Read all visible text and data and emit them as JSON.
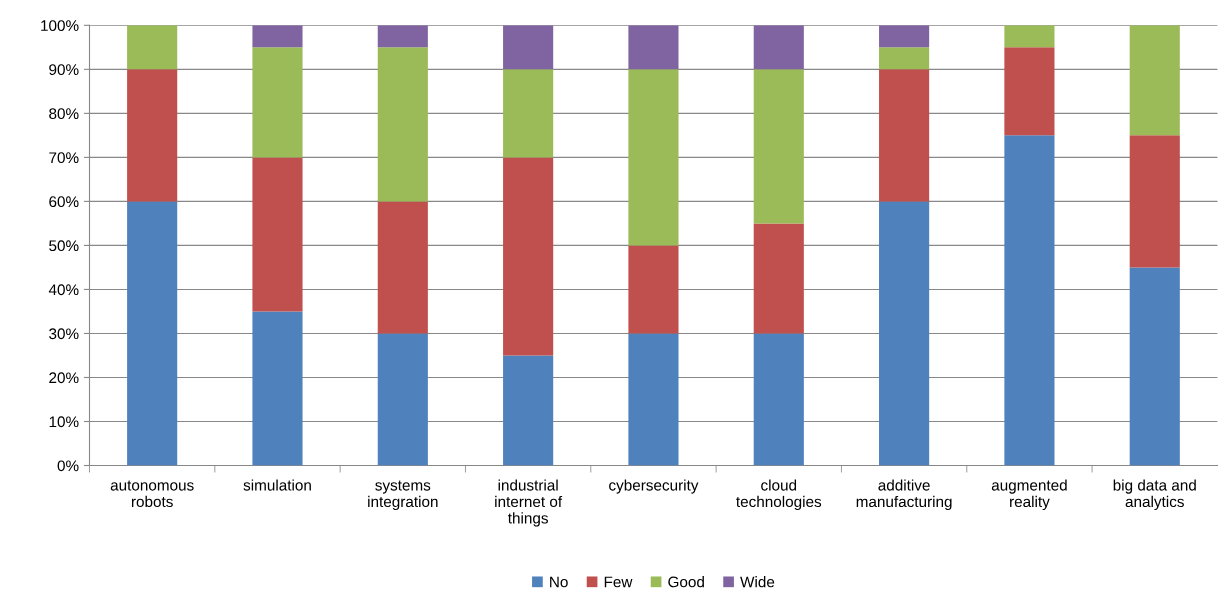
{
  "chart_data": {
    "type": "bar",
    "stacked": true,
    "categories": [
      "autonomous robots",
      "simulation",
      "systems integration",
      "industrial internet of things",
      "cybersecurity",
      "cloud technologies",
      "additive manufacturing",
      "augmented reality",
      "big data and analytics"
    ],
    "series": [
      {
        "name": "No",
        "color": "#4f81bd",
        "values": [
          60,
          35,
          30,
          25,
          30,
          30,
          60,
          75,
          45
        ]
      },
      {
        "name": "Few",
        "color": "#c0504d",
        "values": [
          30,
          35,
          30,
          45,
          20,
          25,
          30,
          20,
          30
        ]
      },
      {
        "name": "Good",
        "color": "#9bbb59",
        "values": [
          10,
          25,
          35,
          20,
          40,
          35,
          5,
          5,
          25
        ]
      },
      {
        "name": "Wide",
        "color": "#8064a2",
        "values": [
          0,
          5,
          5,
          10,
          10,
          10,
          5,
          0,
          0
        ]
      }
    ],
    "ylim": [
      0,
      100
    ],
    "yticks": [
      {
        "value": 0,
        "label": "0%"
      },
      {
        "value": 10,
        "label": "10%"
      },
      {
        "value": 20,
        "label": "20%"
      },
      {
        "value": 30,
        "label": "30%"
      },
      {
        "value": 40,
        "label": "40%"
      },
      {
        "value": 50,
        "label": "50%"
      },
      {
        "value": 60,
        "label": "60%"
      },
      {
        "value": 70,
        "label": "70%"
      },
      {
        "value": 80,
        "label": "80%"
      },
      {
        "value": 90,
        "label": "90%"
      },
      {
        "value": 100,
        "label": "100%"
      }
    ],
    "grid": "y",
    "legend": "bottom"
  }
}
